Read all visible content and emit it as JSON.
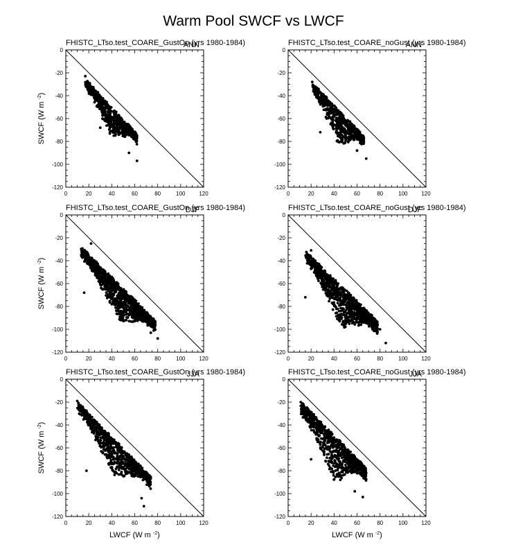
{
  "title": "Warm Pool SWCF vs LWCF",
  "chart_data": [
    {
      "type": "scatter",
      "title": "FHISTC_LTso.test_COARE_GustOn (yrs 1980-1984)",
      "season": "ANN",
      "xlabel": "",
      "ylabel": "SWCF (W m",
      "ylabel_sup": "-2",
      "ylabel_end": ")",
      "xlim": [
        0,
        120
      ],
      "ylim": [
        -120,
        0
      ],
      "xticks": [
        "0",
        "20",
        "40",
        "60",
        "80",
        "100",
        "120"
      ],
      "yticks": [
        "0",
        "-20",
        "-40",
        "-60",
        "-80",
        "-100",
        "-120"
      ],
      "reference_line": "one-to-one",
      "cloud": {
        "n": 700,
        "x_range": [
          17,
          62
        ],
        "y_at_xmin": -27,
        "slope": -1.06,
        "lower_spread": 24,
        "seed": 11
      },
      "extremes": [
        {
          "x": 17,
          "y": -23
        },
        {
          "x": 62,
          "y": -97
        },
        {
          "x": 55,
          "y": -90
        },
        {
          "x": 30,
          "y": -68
        }
      ]
    },
    {
      "type": "scatter",
      "title": "FHISTC_LTso.test_COARE_noGust (yrs 1980-1984)",
      "season": "ANN",
      "xlabel": "",
      "ylabel": "",
      "xlim": [
        0,
        120
      ],
      "ylim": [
        -120,
        0
      ],
      "xticks": [
        "0",
        "20",
        "40",
        "60",
        "80",
        "100",
        "120"
      ],
      "yticks": [
        "0",
        "-20",
        "-40",
        "-60",
        "-80",
        "-100",
        "-120"
      ],
      "reference_line": "one-to-one",
      "cloud": {
        "n": 650,
        "x_range": [
          21,
          66
        ],
        "y_at_xmin": -30,
        "slope": -1.05,
        "lower_spread": 28,
        "seed": 23
      },
      "extremes": [
        {
          "x": 21,
          "y": -28
        },
        {
          "x": 68,
          "y": -95
        },
        {
          "x": 60,
          "y": -88
        },
        {
          "x": 28,
          "y": -72
        }
      ]
    },
    {
      "type": "scatter",
      "title": "FHISTC_LTso.test_COARE_GustOn (yrs 1980-1984)",
      "season": "DJF",
      "xlabel": "",
      "ylabel": "SWCF (W m",
      "ylabel_sup": "-2",
      "ylabel_end": ")",
      "xlim": [
        0,
        120
      ],
      "ylim": [
        -120,
        0
      ],
      "xticks": [
        "0",
        "20",
        "40",
        "60",
        "80",
        "100",
        "120"
      ],
      "yticks": [
        "0",
        "-20",
        "-40",
        "-60",
        "-80",
        "-100",
        "-120"
      ],
      "reference_line": "one-to-one",
      "cloud": {
        "n": 1100,
        "x_range": [
          13,
          78
        ],
        "y_at_xmin": -29,
        "slope": -1.0,
        "lower_spread": 30,
        "seed": 37
      },
      "extremes": [
        {
          "x": 22,
          "y": -25
        },
        {
          "x": 80,
          "y": -108
        },
        {
          "x": 74,
          "y": -103
        },
        {
          "x": 16,
          "y": -68
        }
      ]
    },
    {
      "type": "scatter",
      "title": "FHISTC_LTso.test_COARE_noGust (yrs 1980-1984)",
      "season": "DJF",
      "xlabel": "",
      "ylabel": "",
      "xlim": [
        0,
        120
      ],
      "ylim": [
        -120,
        0
      ],
      "xticks": [
        "0",
        "20",
        "40",
        "60",
        "80",
        "100",
        "120"
      ],
      "yticks": [
        "0",
        "-20",
        "-40",
        "-60",
        "-80",
        "-100",
        "-120"
      ],
      "reference_line": "one-to-one",
      "cloud": {
        "n": 1000,
        "x_range": [
          15,
          78
        ],
        "y_at_xmin": -33,
        "slope": -0.98,
        "lower_spread": 34,
        "seed": 41
      },
      "extremes": [
        {
          "x": 20,
          "y": -31
        },
        {
          "x": 85,
          "y": -112
        },
        {
          "x": 80,
          "y": -100
        },
        {
          "x": 15,
          "y": -72
        }
      ]
    },
    {
      "type": "scatter",
      "title": "FHISTC_LTso.test_COARE_GustOn (yrs 1980-1984)",
      "season": "JJA",
      "xlabel": "LWCF (W m",
      "xlabel_sup": "-2",
      "xlabel_end": ")",
      "ylabel": "SWCF (W m",
      "ylabel_sup": "-2",
      "ylabel_end": ")",
      "xlim": [
        0,
        120
      ],
      "ylim": [
        -120,
        0
      ],
      "xticks": [
        "0",
        "20",
        "40",
        "60",
        "80",
        "100",
        "120"
      ],
      "yticks": [
        "0",
        "-20",
        "-40",
        "-60",
        "-80",
        "-100",
        "-120"
      ],
      "reference_line": "one-to-one",
      "cloud": {
        "n": 900,
        "x_range": [
          10,
          74
        ],
        "y_at_xmin": -21,
        "slope": -1.03,
        "lower_spread": 30,
        "seed": 53
      },
      "extremes": [
        {
          "x": 10,
          "y": -19
        },
        {
          "x": 68,
          "y": -111
        },
        {
          "x": 66,
          "y": -104
        },
        {
          "x": 18,
          "y": -80
        }
      ]
    },
    {
      "type": "scatter",
      "title": "FHISTC_LTso.test_COARE_noGust (yrs 1980-1984)",
      "season": "JJA",
      "xlabel": "LWCF (W m",
      "xlabel_sup": "-2",
      "xlabel_end": ")",
      "ylabel": "",
      "xlim": [
        0,
        120
      ],
      "ylim": [
        -120,
        0
      ],
      "xticks": [
        "0",
        "20",
        "40",
        "60",
        "80",
        "100",
        "120"
      ],
      "yticks": [
        "0",
        "-20",
        "-40",
        "-60",
        "-80",
        "-100",
        "-120"
      ],
      "reference_line": "one-to-one",
      "cloud": {
        "n": 850,
        "x_range": [
          11,
          68
        ],
        "y_at_xmin": -21,
        "slope": -1.02,
        "lower_spread": 38,
        "seed": 67
      },
      "extremes": [
        {
          "x": 11,
          "y": -20
        },
        {
          "x": 65,
          "y": -103
        },
        {
          "x": 58,
          "y": -98
        },
        {
          "x": 20,
          "y": -70
        }
      ]
    }
  ]
}
